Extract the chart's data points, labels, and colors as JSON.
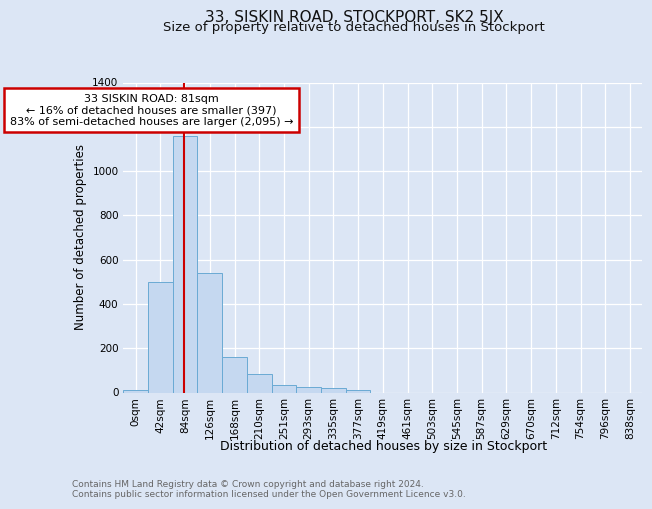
{
  "title": "33, SISKIN ROAD, STOCKPORT, SK2 5JX",
  "subtitle": "Size of property relative to detached houses in Stockport",
  "xlabel": "Distribution of detached houses by size in Stockport",
  "ylabel": "Number of detached properties",
  "footnote1": "Contains HM Land Registry data © Crown copyright and database right 2024.",
  "footnote2": "Contains public sector information licensed under the Open Government Licence v3.0.",
  "bar_labels": [
    "0sqm",
    "42sqm",
    "84sqm",
    "126sqm",
    "168sqm",
    "210sqm",
    "251sqm",
    "293sqm",
    "335sqm",
    "377sqm",
    "419sqm",
    "461sqm",
    "503sqm",
    "545sqm",
    "587sqm",
    "629sqm",
    "670sqm",
    "712sqm",
    "754sqm",
    "796sqm",
    "838sqm"
  ],
  "bar_values": [
    10,
    500,
    1160,
    540,
    162,
    82,
    35,
    27,
    20,
    12,
    0,
    0,
    0,
    0,
    0,
    0,
    0,
    0,
    0,
    0,
    0
  ],
  "bar_color": "#c5d8f0",
  "bar_edge_color": "#6aaad4",
  "annotation_title": "33 SISKIN ROAD: 81sqm",
  "annotation_line1": "← 16% of detached houses are smaller (397)",
  "annotation_line2": "83% of semi-detached houses are larger (2,095) →",
  "annotation_box_color": "#ffffff",
  "annotation_box_edge": "#cc0000",
  "vline_color": "#cc0000",
  "vline_x": 1.97,
  "ylim": [
    0,
    1400
  ],
  "yticks": [
    0,
    200,
    400,
    600,
    800,
    1000,
    1200,
    1400
  ],
  "bg_color": "#dce6f5",
  "plot_bg_color": "#dce6f5",
  "title_fontsize": 11,
  "subtitle_fontsize": 9.5,
  "xlabel_fontsize": 9,
  "ylabel_fontsize": 8.5,
  "footnote_fontsize": 6.5,
  "tick_fontsize": 7.5,
  "annot_fontsize": 8.0
}
